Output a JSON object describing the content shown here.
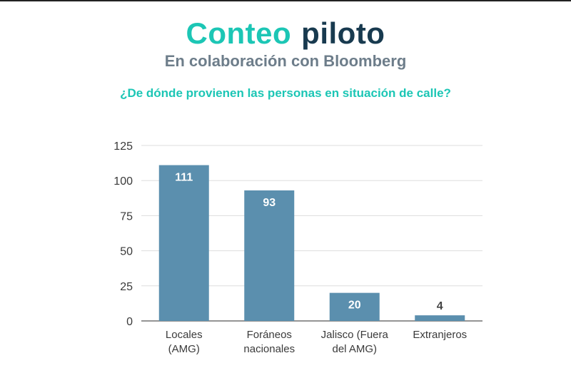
{
  "header": {
    "title_part1": "Conteo",
    "title_part2": "piloto",
    "subtitle": "En colaboración con Bloomberg"
  },
  "colors": {
    "accent_teal": "#1cc6b5",
    "title_dark": "#183a4f",
    "bar": "#5b8fae",
    "grid": "#dddddd"
  },
  "chart_data": {
    "type": "bar",
    "title": "¿De dónde provienen las personas en situación de calle?",
    "categories": [
      [
        "Locales",
        "(AMG)"
      ],
      [
        "Foráneos",
        "nacionales"
      ],
      [
        "Jalisco (Fuera",
        "del AMG)"
      ],
      [
        "Extranjeros"
      ]
    ],
    "values": [
      111,
      93,
      20,
      4
    ],
    "data_labels": [
      "111",
      "93",
      "20",
      "4"
    ],
    "ylim": [
      0,
      125
    ],
    "yticks": [
      0,
      25,
      50,
      75,
      100,
      125
    ],
    "grid": true,
    "xlabel": "",
    "ylabel": ""
  }
}
